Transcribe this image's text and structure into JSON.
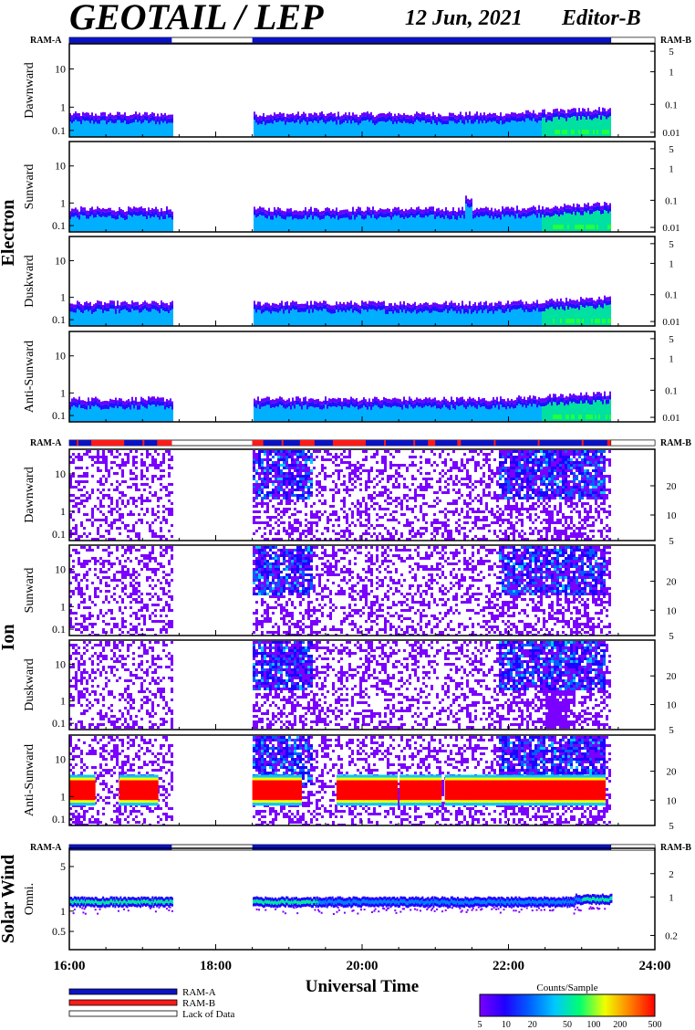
{
  "header": {
    "instrument": "GEOTAIL / LEP",
    "date": "12 Jun, 2021",
    "editor": "Editor-B"
  },
  "chart_data": {
    "type": "heatmap",
    "xlabel": "Universal Time",
    "x_ticks": [
      "16:00",
      "18:00",
      "20:00",
      "22:00",
      "24:00"
    ],
    "x_range_hours": [
      16,
      24
    ],
    "data_gaps": [
      [
        17.4,
        18.5
      ],
      [
        23.4,
        24.0
      ]
    ],
    "colorbar": {
      "title": "Counts/Sample",
      "ticks": [
        "5",
        "10",
        "20",
        "50",
        "100",
        "200",
        "500"
      ],
      "colors": [
        "#7a00ff",
        "#2000ff",
        "#0060ff",
        "#00c8ff",
        "#00ff70",
        "#f0ff00",
        "#ff8000",
        "#ff0000"
      ]
    },
    "legend": [
      {
        "label": "RAM-A",
        "color": "#0a12c4"
      },
      {
        "label": "RAM-B",
        "color": "#ff1a1a"
      },
      {
        "label": "Lack of Data",
        "color": "#ffffff"
      }
    ],
    "ram_labels": {
      "left": "RAM-A",
      "right": "RAM-B"
    },
    "groups": [
      {
        "name": "Electron",
        "panels": [
          {
            "name": "Dawnward",
            "left_ticks": [
              "10",
              "1",
              "0.1"
            ],
            "right_ticks": [
              "5",
              "1",
              "0.1",
              "0.01"
            ]
          },
          {
            "name": "Sunward",
            "left_ticks": [
              "10",
              "1",
              "0.1"
            ],
            "right_ticks": [
              "5",
              "1",
              "0.1",
              "0.01"
            ]
          },
          {
            "name": "Duskward",
            "left_ticks": [
              "10",
              "1",
              "0.1"
            ],
            "right_ticks": [
              "5",
              "1",
              "0.1",
              "0.01"
            ]
          },
          {
            "name": "Anti-Sunward",
            "left_ticks": [
              "10",
              "1",
              "0.1"
            ],
            "right_ticks": [
              "5",
              "1",
              "0.1",
              "0.01"
            ]
          }
        ]
      },
      {
        "name": "Ion",
        "panels": [
          {
            "name": "Dawnward",
            "left_ticks": [
              "10",
              "1",
              "0.1"
            ],
            "right_ticks": [
              "20",
              "10",
              "5"
            ]
          },
          {
            "name": "Sunward",
            "left_ticks": [
              "10",
              "1",
              "0.1"
            ],
            "right_ticks": [
              "20",
              "10",
              "5"
            ]
          },
          {
            "name": "Duskward",
            "left_ticks": [
              "10",
              "1",
              "0.1"
            ],
            "right_ticks": [
              "20",
              "10",
              "5"
            ]
          },
          {
            "name": "Anti-Sunward",
            "left_ticks": [
              "10",
              "1",
              "0.1"
            ],
            "right_ticks": [
              "20",
              "10",
              "5"
            ]
          }
        ]
      },
      {
        "name": "Solar Wind",
        "panels": [
          {
            "name": "Omni.",
            "left_ticks": [
              "5",
              "1",
              "0.5"
            ],
            "right_ticks": [
              "2",
              "1",
              "0.2"
            ]
          }
        ]
      }
    ]
  }
}
